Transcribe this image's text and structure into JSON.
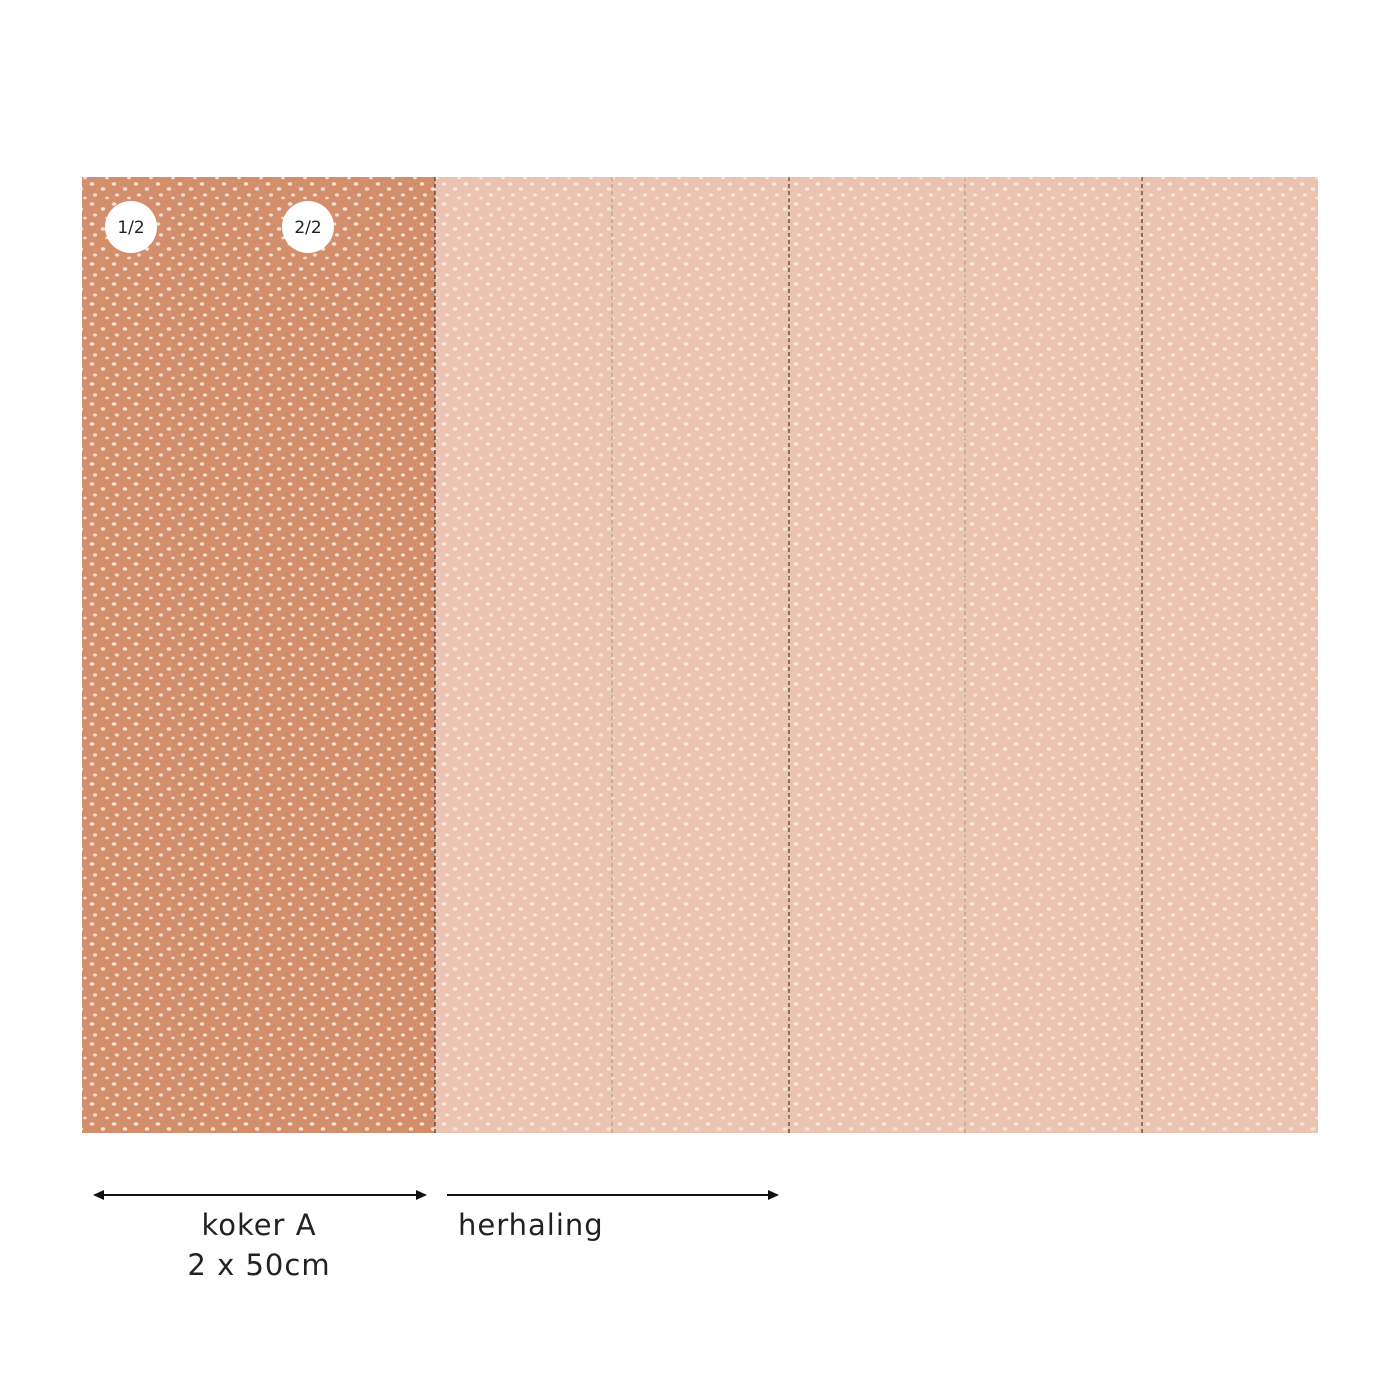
{
  "badges": [
    "1/2",
    "2/2"
  ],
  "labels": {
    "roll": "koker A",
    "roll_size": "2 x 50cm",
    "repeat": "herhaling"
  }
}
